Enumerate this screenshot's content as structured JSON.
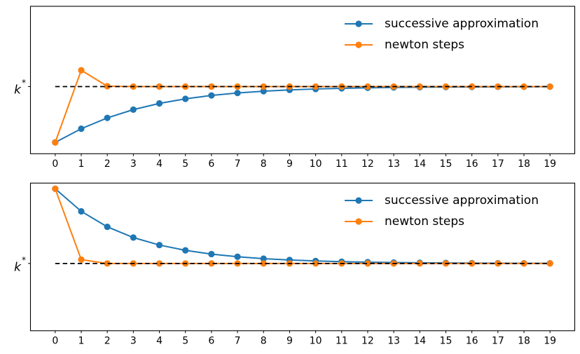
{
  "figure": {
    "background": "#ffffff",
    "axes_color": "#000000"
  },
  "chart_data": [
    {
      "type": "line",
      "panel": "top",
      "title": "",
      "xlabel": "",
      "ylabel": "",
      "x": [
        0,
        1,
        2,
        3,
        4,
        5,
        6,
        7,
        8,
        9,
        10,
        11,
        12,
        13,
        14,
        15,
        16,
        17,
        18,
        19
      ],
      "xtick_labels": [
        "0",
        "1",
        "2",
        "3",
        "4",
        "5",
        "6",
        "7",
        "8",
        "9",
        "10",
        "11",
        "12",
        "13",
        "14",
        "15",
        "16",
        "17",
        "18",
        "19"
      ],
      "ytick": {
        "base": "k",
        "sup": "*"
      },
      "ylim": [
        0.6,
        3.2
      ],
      "grid": false,
      "k_star": 1.7846,
      "reference_line": {
        "value": 1.7846,
        "color": "#000000",
        "style": "dashed"
      },
      "legend": {
        "location": "upper right",
        "frameon": false
      },
      "series": [
        {
          "name": "successive approximation",
          "color": "#1f77b4",
          "marker": "circle",
          "values": [
            0.8,
            1.0412,
            1.232,
            1.378,
            1.4873,
            1.5683,
            1.6277,
            1.671,
            1.7025,
            1.7254,
            1.7419,
            1.7538,
            1.7624,
            1.7687,
            1.7731,
            1.7764,
            1.7787,
            1.7804,
            1.7816,
            1.7824
          ]
        },
        {
          "name": "newton steps",
          "color": "#ff7f0e",
          "marker": "circle",
          "values": [
            0.8,
            2.0721,
            1.7903,
            1.7847,
            1.7846,
            1.7846,
            1.7846,
            1.7846,
            1.7846,
            1.7846,
            1.7846,
            1.7846,
            1.7846,
            1.7846,
            1.7846,
            1.7846,
            1.7846,
            1.7846,
            1.7846,
            1.7846
          ]
        }
      ]
    },
    {
      "type": "line",
      "panel": "bottom",
      "title": "",
      "xlabel": "",
      "ylabel": "",
      "x": [
        0,
        1,
        2,
        3,
        4,
        5,
        6,
        7,
        8,
        9,
        10,
        11,
        12,
        13,
        14,
        15,
        16,
        17,
        18,
        19
      ],
      "xtick_labels": [
        "0",
        "1",
        "2",
        "3",
        "4",
        "5",
        "6",
        "7",
        "8",
        "9",
        "10",
        "11",
        "12",
        "13",
        "14",
        "15",
        "16",
        "17",
        "18",
        "19"
      ],
      "ytick": {
        "base": "k",
        "sup": "*"
      },
      "ylim": [
        0.6,
        3.2
      ],
      "grid": false,
      "k_star": 1.7846,
      "reference_line": {
        "value": 1.7846,
        "color": "#000000",
        "style": "dashed"
      },
      "legend": {
        "location": "upper right",
        "frameon": false
      },
      "series": [
        {
          "name": "successive approximation",
          "color": "#1f77b4",
          "marker": "circle",
          "values": [
            3.1,
            2.7025,
            2.43,
            2.2411,
            2.109,
            2.016,
            1.95,
            1.9031,
            1.8696,
            1.8457,
            1.8285,
            1.8162,
            1.8073,
            1.801,
            1.7964,
            1.7931,
            1.7907,
            1.789,
            1.7878,
            1.7869
          ]
        },
        {
          "name": "newton steps",
          "color": "#ff7f0e",
          "marker": "circle",
          "values": [
            3.1,
            1.8518,
            1.785,
            1.7846,
            1.7846,
            1.7846,
            1.7846,
            1.7846,
            1.7846,
            1.7846,
            1.7846,
            1.7846,
            1.7846,
            1.7846,
            1.7846,
            1.7846,
            1.7846,
            1.7846,
            1.7846,
            1.7846
          ]
        }
      ]
    }
  ]
}
